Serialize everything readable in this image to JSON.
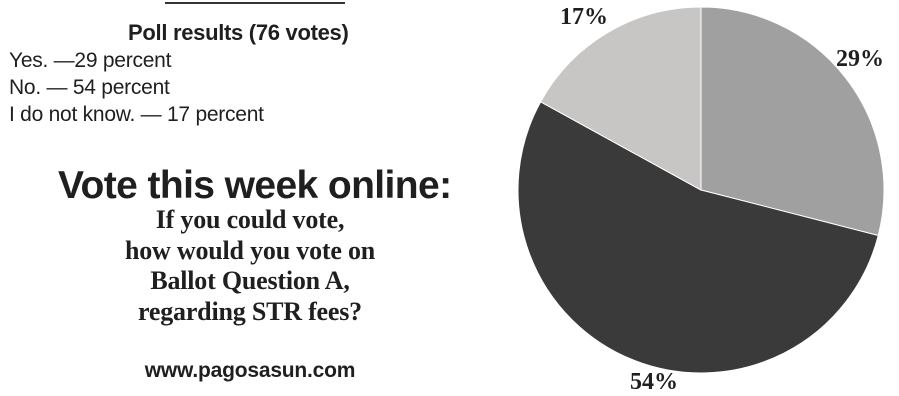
{
  "poll": {
    "title": "Poll results (76 votes)",
    "lines": [
      "Yes. —29 percent",
      "No. — 54 percent",
      "I do not know. — 17 percent"
    ]
  },
  "promo": {
    "heading": "Vote this week online:",
    "question_lines": [
      "If you could vote,",
      "how would you vote on",
      "Ballot Question A,",
      "regarding STR fees?"
    ],
    "url": "www.pagosasun.com"
  },
  "chart_data": {
    "type": "pie",
    "categories": [
      "Yes.",
      "No.",
      "I do not know."
    ],
    "values": [
      29,
      54,
      17
    ],
    "labels": [
      "29%",
      "54%",
      "17%"
    ],
    "colors": [
      "#a0a0a0",
      "#3a3a3a",
      "#c8c6c4"
    ]
  }
}
